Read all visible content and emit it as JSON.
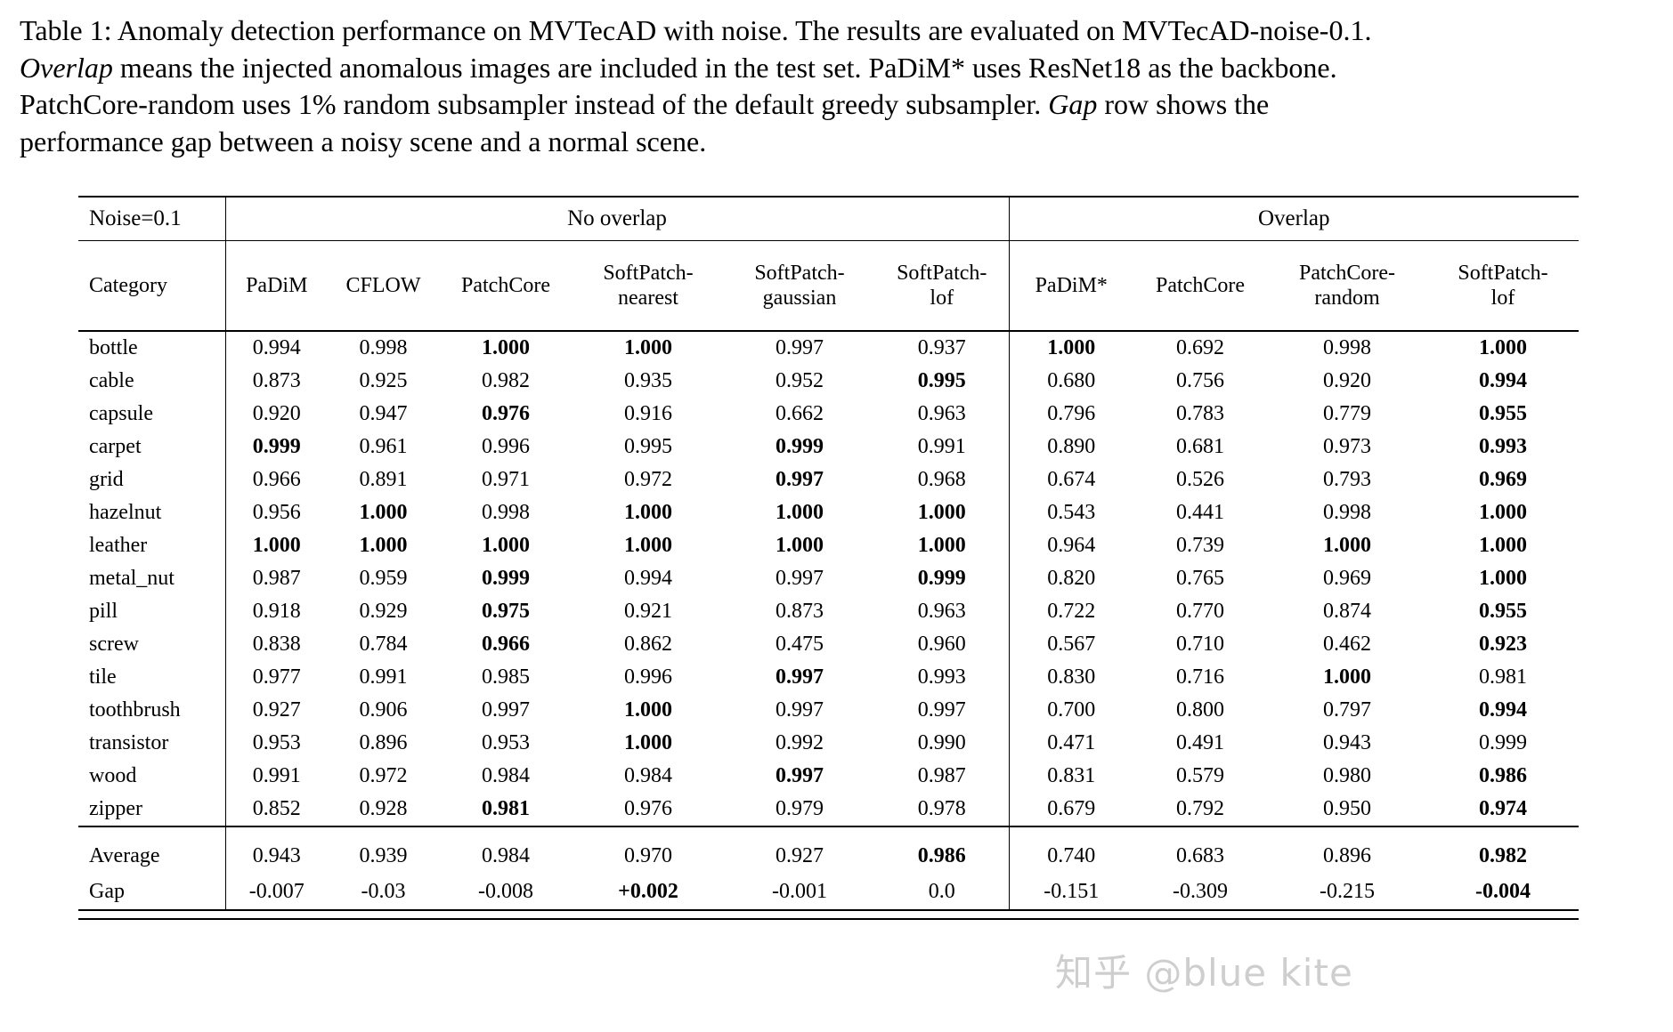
{
  "caption": {
    "segments": [
      {
        "text": "Table 1: Anomaly detection performance on MVTecAD with noise. The results are evaluated on MVTecAD-noise-0.1. ",
        "italic": false
      },
      {
        "text": "Overlap",
        "italic": true
      },
      {
        "text": " means the injected anomalous images are included in the test set. PaDiM* uses ResNet18 as the backbone. PatchCore-random uses 1% random subsampler instead of the default greedy subsampler. ",
        "italic": false
      },
      {
        "text": "Gap",
        "italic": true
      },
      {
        "text": " row shows the performance gap between a noisy scene and a normal scene.",
        "italic": false
      }
    ]
  },
  "table": {
    "noise_label": "Noise=0.1",
    "group_no_overlap": "No overlap",
    "group_overlap": "Overlap",
    "columns": [
      "Category",
      "PaDiM",
      "CFLOW",
      "PatchCore",
      "SoftPatch-\nnearest",
      "SoftPatch-\ngaussian",
      "SoftPatch-\nlof",
      "PaDiM*",
      "PatchCore",
      "PatchCore-\nrandom",
      "SoftPatch-\nlof"
    ],
    "rows": [
      {
        "category": "bottle",
        "values": [
          "0.994",
          "0.998",
          "1.000",
          "1.000",
          "0.997",
          "0.937",
          "1.000",
          "0.692",
          "0.998",
          "1.000"
        ],
        "bold": [
          2,
          3,
          6,
          9
        ]
      },
      {
        "category": "cable",
        "values": [
          "0.873",
          "0.925",
          "0.982",
          "0.935",
          "0.952",
          "0.995",
          "0.680",
          "0.756",
          "0.920",
          "0.994"
        ],
        "bold": [
          5,
          9
        ]
      },
      {
        "category": "capsule",
        "values": [
          "0.920",
          "0.947",
          "0.976",
          "0.916",
          "0.662",
          "0.963",
          "0.796",
          "0.783",
          "0.779",
          "0.955"
        ],
        "bold": [
          2,
          9
        ]
      },
      {
        "category": "carpet",
        "values": [
          "0.999",
          "0.961",
          "0.996",
          "0.995",
          "0.999",
          "0.991",
          "0.890",
          "0.681",
          "0.973",
          "0.993"
        ],
        "bold": [
          0,
          4,
          9
        ]
      },
      {
        "category": "grid",
        "values": [
          "0.966",
          "0.891",
          "0.971",
          "0.972",
          "0.997",
          "0.968",
          "0.674",
          "0.526",
          "0.793",
          "0.969"
        ],
        "bold": [
          4,
          9
        ]
      },
      {
        "category": "hazelnut",
        "values": [
          "0.956",
          "1.000",
          "0.998",
          "1.000",
          "1.000",
          "1.000",
          "0.543",
          "0.441",
          "0.998",
          "1.000"
        ],
        "bold": [
          1,
          3,
          4,
          5,
          9
        ]
      },
      {
        "category": "leather",
        "values": [
          "1.000",
          "1.000",
          "1.000",
          "1.000",
          "1.000",
          "1.000",
          "0.964",
          "0.739",
          "1.000",
          "1.000"
        ],
        "bold": [
          0,
          1,
          2,
          3,
          4,
          5,
          8,
          9
        ]
      },
      {
        "category": "metal_nut",
        "values": [
          "0.987",
          "0.959",
          "0.999",
          "0.994",
          "0.997",
          "0.999",
          "0.820",
          "0.765",
          "0.969",
          "1.000"
        ],
        "bold": [
          2,
          5,
          9
        ]
      },
      {
        "category": "pill",
        "values": [
          "0.918",
          "0.929",
          "0.975",
          "0.921",
          "0.873",
          "0.963",
          "0.722",
          "0.770",
          "0.874",
          "0.955"
        ],
        "bold": [
          2,
          9
        ]
      },
      {
        "category": "screw",
        "values": [
          "0.838",
          "0.784",
          "0.966",
          "0.862",
          "0.475",
          "0.960",
          "0.567",
          "0.710",
          "0.462",
          "0.923"
        ],
        "bold": [
          2,
          9
        ]
      },
      {
        "category": "tile",
        "values": [
          "0.977",
          "0.991",
          "0.985",
          "0.996",
          "0.997",
          "0.993",
          "0.830",
          "0.716",
          "1.000",
          "0.981"
        ],
        "bold": [
          4,
          8
        ]
      },
      {
        "category": "toothbrush",
        "values": [
          "0.927",
          "0.906",
          "0.997",
          "1.000",
          "0.997",
          "0.997",
          "0.700",
          "0.800",
          "0.797",
          "0.994"
        ],
        "bold": [
          3,
          9
        ]
      },
      {
        "category": "transistor",
        "values": [
          "0.953",
          "0.896",
          "0.953",
          "1.000",
          "0.992",
          "0.990",
          "0.471",
          "0.491",
          "0.943",
          "0.999"
        ],
        "bold": [
          3
        ]
      },
      {
        "category": "wood",
        "values": [
          "0.991",
          "0.972",
          "0.984",
          "0.984",
          "0.997",
          "0.987",
          "0.831",
          "0.579",
          "0.980",
          "0.986"
        ],
        "bold": [
          4,
          9
        ]
      },
      {
        "category": "zipper",
        "values": [
          "0.852",
          "0.928",
          "0.981",
          "0.976",
          "0.979",
          "0.978",
          "0.679",
          "0.792",
          "0.950",
          "0.974"
        ],
        "bold": [
          2,
          9
        ]
      }
    ],
    "footer_rows": [
      {
        "category": "Average",
        "values": [
          "0.943",
          "0.939",
          "0.984",
          "0.970",
          "0.927",
          "0.986",
          "0.740",
          "0.683",
          "0.896",
          "0.982"
        ],
        "bold": [
          5,
          9
        ]
      },
      {
        "category": "Gap",
        "values": [
          "-0.007",
          "-0.03",
          "-0.008",
          "+0.002",
          "-0.001",
          "0.0",
          "-0.151",
          "-0.309",
          "-0.215",
          "-0.004"
        ],
        "bold": [
          3,
          9
        ]
      }
    ]
  },
  "watermark": {
    "text": "知乎 @blue kite",
    "color": "#c3c3c3"
  }
}
